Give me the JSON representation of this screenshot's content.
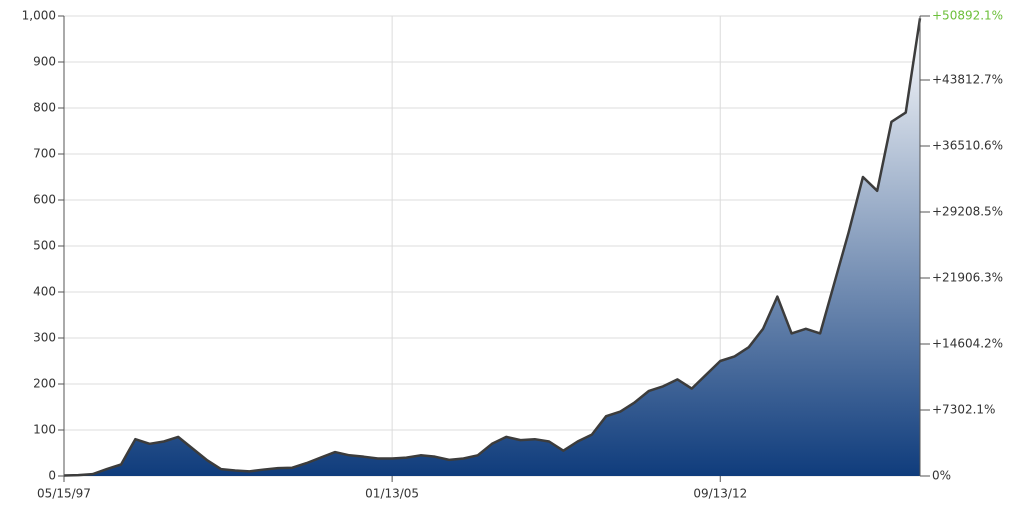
{
  "chart_data": {
    "type": "area",
    "categories": [
      "05/15/97",
      null,
      null,
      null,
      null,
      null,
      null,
      null,
      null,
      null,
      null,
      null,
      null,
      null,
      null,
      null,
      null,
      null,
      null,
      null,
      null,
      null,
      null,
      "01/13/05",
      null,
      null,
      null,
      null,
      null,
      null,
      null,
      null,
      null,
      null,
      null,
      null,
      null,
      null,
      null,
      null,
      null,
      null,
      null,
      null,
      null,
      null,
      "09/13/12",
      null,
      null,
      null,
      null,
      null,
      null,
      null,
      null,
      null,
      null,
      null,
      null,
      null,
      null
    ],
    "values": [
      1,
      2,
      4,
      15,
      25,
      80,
      70,
      75,
      85,
      60,
      35,
      15,
      12,
      10,
      14,
      17,
      18,
      28,
      40,
      52,
      45,
      42,
      38,
      38,
      40,
      45,
      42,
      35,
      38,
      45,
      70,
      85,
      78,
      80,
      75,
      55,
      75,
      90,
      130,
      140,
      160,
      185,
      195,
      210,
      190,
      220,
      250,
      260,
      280,
      320,
      390,
      310,
      320,
      310,
      420,
      530,
      650,
      620,
      770,
      790,
      995
    ],
    "ylim": [
      0,
      1000
    ],
    "yticks": [
      0,
      100,
      200,
      300,
      400,
      500,
      600,
      700,
      800,
      900,
      {
        "value": 1000,
        "label": "1,000"
      }
    ],
    "y2lim": [
      0,
      50892.1
    ],
    "y2ticks": [
      {
        "value": 0,
        "label": "0%"
      },
      {
        "value": 7302.1,
        "label": "+7302.1%"
      },
      {
        "value": 14604.2,
        "label": "+14604.2%"
      },
      {
        "value": 21906.3,
        "label": "+21906.3%"
      },
      {
        "value": 29208.5,
        "label": "+29208.5%"
      },
      {
        "value": 36510.6,
        "label": "+36510.6%"
      },
      {
        "value": 43812.7,
        "label": "+43812.7%"
      },
      {
        "value": 50892.1,
        "label": "+50892.1%"
      }
    ],
    "grid": true,
    "color": "#0f3c7c",
    "top_color": "#ffffff",
    "line_color": "#3c3c3c",
    "y2_top_tick_color": "#6cbf3a"
  }
}
